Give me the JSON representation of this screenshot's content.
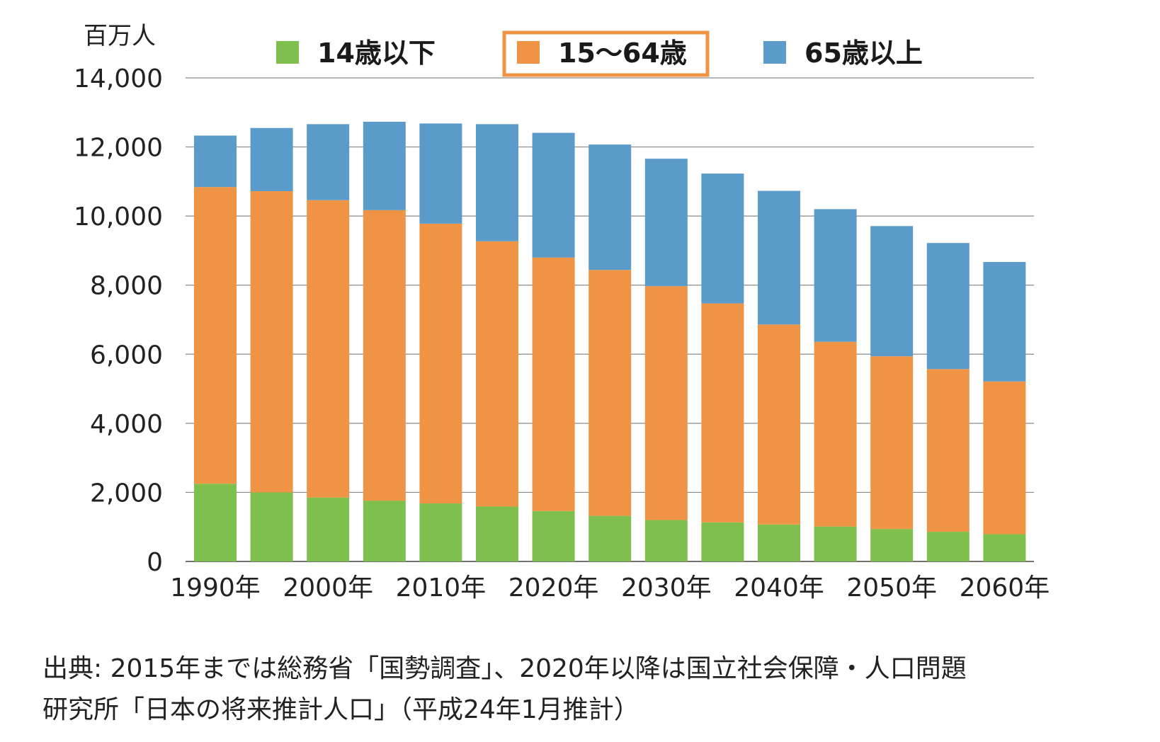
{
  "chart_data": {
    "type": "bar",
    "stacked": true,
    "title": "",
    "xlabel": "",
    "ylabel": "",
    "unit": "百万人",
    "ylim": [
      0,
      14000
    ],
    "yticks": [
      "0",
      "2,000",
      "4,000",
      "6,000",
      "8,000",
      "10,000",
      "12,000",
      "14,000"
    ],
    "ytick_values": [
      0,
      2000,
      4000,
      6000,
      8000,
      10000,
      12000,
      14000
    ],
    "categories": [
      "1990年",
      "1995年",
      "2000年",
      "2005年",
      "2010年",
      "2015年",
      "2020年",
      "2025年",
      "2030年",
      "2035年",
      "2040年",
      "2045年",
      "2050年",
      "2055年",
      "2060年"
    ],
    "xtick_labels": [
      "1990年",
      "",
      "2000年",
      "",
      "2010年",
      "",
      "2020年",
      "",
      "2030年",
      "",
      "2040年",
      "",
      "2050年",
      "",
      "2060年"
    ],
    "grid": true,
    "legend_position": "top",
    "legend_highlight": "15〜64歳",
    "series": [
      {
        "name": "14歳以下",
        "color": "#7fbf4d",
        "values": [
          2250,
          2000,
          1850,
          1760,
          1680,
          1590,
          1460,
          1320,
          1200,
          1130,
          1070,
          1010,
          940,
          860,
          790
        ]
      },
      {
        "name": "15〜64歳",
        "color": "#ee9444",
        "values": [
          8590,
          8720,
          8610,
          8410,
          8100,
          7680,
          7340,
          7120,
          6770,
          6340,
          5790,
          5350,
          5000,
          4710,
          4420
        ]
      },
      {
        "name": "65歳以上",
        "color": "#5b9bc9",
        "values": [
          1490,
          1830,
          2200,
          2560,
          2900,
          3390,
          3610,
          3630,
          3690,
          3760,
          3870,
          3840,
          3770,
          3650,
          3460
        ]
      }
    ]
  },
  "source_note": {
    "line1": "出典: 2015年までは総務省「国勢調査」、2020年以降は国立社会保障・人口問題",
    "line2": "研究所「日本の将来推計人口」（平成24年1月推計）"
  }
}
